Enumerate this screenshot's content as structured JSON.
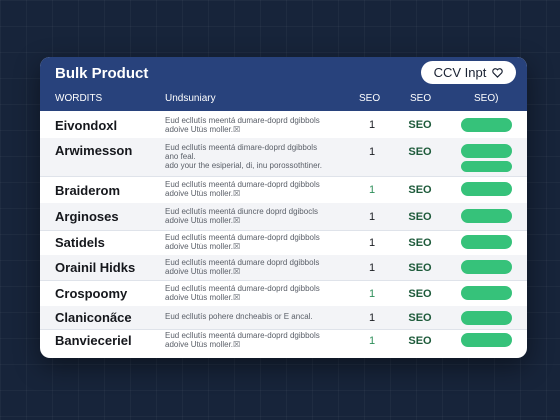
{
  "panel": {
    "title": "Bulk Product",
    "csv_button_label": "CCV Inpt",
    "csv_button_icon": "heart-icon"
  },
  "columns": {
    "name": "WORDITS",
    "summary": "Undsuniary",
    "seo1": "SEO",
    "seo2": "SEO",
    "seo3": "SEO)"
  },
  "colors": {
    "header": "#28427c",
    "pill": "#36c27a",
    "seo_text": "#1d5a3a"
  },
  "rows": [
    {
      "name": "Eivondoxl",
      "desc1": "Eud ecllutís meentá dumare-doprd dgibbols",
      "desc2": "adoive Utu̇s moller.☒",
      "desc3": "",
      "num": "1",
      "seo": "SEO"
    },
    {
      "name": "Arwimesson",
      "desc1": "Eud ecllutís meentá dimare-doprd dgibbols",
      "desc2": "ano feal.",
      "desc3": "ado your the esiperial, di, inu porossothtiner.",
      "num": "1",
      "seo": "SEO"
    },
    {
      "name": "Braiderom",
      "desc1": "Eud ecllutís meentá dumare-doprd dgibbols",
      "desc2": "adoive Utu̇s moller.☒",
      "desc3": "",
      "num": "1",
      "seo": "SEO"
    },
    {
      "name": "Arginoses",
      "desc1": "Eud ecllutís meentá diuncre doprd dgibocls",
      "desc2": "adoive Utu̇s moller.☒",
      "desc3": "",
      "num": "1",
      "seo": "SEO"
    },
    {
      "name": "Satidels",
      "desc1": "Eud ecllutís meentá dumare-doprd dgibbols",
      "desc2": "adoive Utu̇s moller.☒",
      "desc3": "",
      "num": "1",
      "seo": "SEO"
    },
    {
      "name": "Orainil Hidks",
      "desc1": "Eud ecllutís meentá dumare doprd dgibbols",
      "desc2": "adoive Utu̇s moller.☒",
      "desc3": "",
      "num": "1",
      "seo": "SEO"
    },
    {
      "name": "Crospoomy",
      "desc1": "Eud ecllutís meentá dumare-doprd dgibbols",
      "desc2": "adoive Utu̇s moller.☒",
      "desc3": "",
      "num": "1",
      "seo": "SEO"
    },
    {
      "name": "Clanicona̋ce",
      "desc1": "Eud ecllutís pohere dncheabis or E ancal.",
      "desc2": "",
      "desc3": "",
      "num": "1",
      "seo": "SEO"
    },
    {
      "name": "Banvieceriel",
      "desc1": "Eud ecllutís meentá dumare-doprd dgibbols",
      "desc2": "adoive Utu̇s moller.☒",
      "desc3": "",
      "num": "1",
      "seo": "SEO"
    }
  ]
}
